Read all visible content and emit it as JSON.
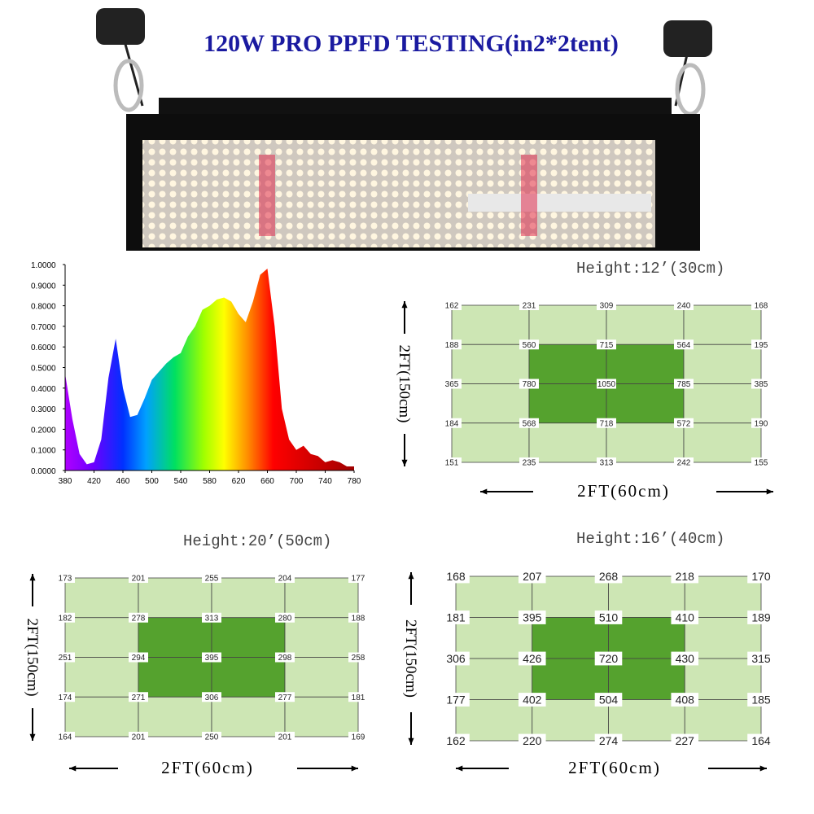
{
  "title": "120W  PRO PPFD TESTING(in2*2tent)",
  "chart_data": {
    "type": "area",
    "x": [
      380,
      390,
      400,
      410,
      420,
      430,
      440,
      450,
      460,
      470,
      480,
      490,
      500,
      510,
      520,
      530,
      540,
      550,
      560,
      570,
      580,
      590,
      600,
      610,
      620,
      630,
      640,
      650,
      660,
      670,
      680,
      690,
      700,
      710,
      720,
      730,
      740,
      750,
      760,
      770,
      780
    ],
    "values": [
      0.47,
      0.25,
      0.08,
      0.03,
      0.04,
      0.15,
      0.45,
      0.64,
      0.4,
      0.26,
      0.27,
      0.35,
      0.44,
      0.48,
      0.52,
      0.55,
      0.57,
      0.65,
      0.7,
      0.78,
      0.8,
      0.83,
      0.84,
      0.82,
      0.76,
      0.72,
      0.82,
      0.95,
      0.98,
      0.7,
      0.3,
      0.15,
      0.1,
      0.12,
      0.08,
      0.07,
      0.04,
      0.05,
      0.04,
      0.02,
      0.02
    ],
    "xlim": [
      380,
      780
    ],
    "xticks": [
      380,
      420,
      460,
      500,
      540,
      580,
      620,
      660,
      700,
      740,
      780
    ],
    "ylim": [
      0,
      1
    ],
    "yticks": [
      {
        "value": 0,
        "label": "0.0000"
      },
      {
        "value": 0.1,
        "label": "0.1000"
      },
      {
        "value": 0.2,
        "label": "0.2000"
      },
      {
        "value": 0.3,
        "label": "0.3000"
      },
      {
        "value": 0.4,
        "label": "0.4000"
      },
      {
        "value": 0.5,
        "label": "0.5000"
      },
      {
        "value": 0.6,
        "label": "0.6000"
      },
      {
        "value": 0.7,
        "label": "0.7000"
      },
      {
        "value": 0.8,
        "label": "0.8000"
      },
      {
        "value": 0.9,
        "label": "0.9000"
      },
      {
        "value": 1,
        "label": "1.0000"
      }
    ]
  },
  "grids": [
    {
      "height": "Height:12’(30cm)",
      "side": "2FT(150cm)",
      "bottom": "2FT(60cm)",
      "values": [
        [
          162,
          231,
          309,
          240,
          168
        ],
        [
          188,
          560,
          715,
          564,
          195
        ],
        [
          365,
          780,
          1050,
          785,
          385
        ],
        [
          184,
          568,
          718,
          572,
          190
        ],
        [
          151,
          235,
          313,
          242,
          155
        ]
      ]
    },
    {
      "height": "Height:20’(50cm)",
      "side": "2FT(150cm)",
      "bottom": "2FT(60cm)",
      "values": [
        [
          173,
          201,
          255,
          204,
          177
        ],
        [
          182,
          278,
          313,
          280,
          188
        ],
        [
          251,
          294,
          395,
          298,
          258
        ],
        [
          174,
          271,
          306,
          277,
          181
        ],
        [
          164,
          201,
          250,
          201,
          169
        ]
      ]
    },
    {
      "height": "Height:16’(40cm)",
      "side": "2FT(150cm)",
      "bottom": "2FT(60cm)",
      "values": [
        [
          168,
          207,
          268,
          218,
          170
        ],
        [
          181,
          395,
          510,
          410,
          189
        ],
        [
          306,
          426,
          720,
          430,
          315
        ],
        [
          177,
          402,
          504,
          408,
          185
        ],
        [
          162,
          220,
          274,
          227,
          164
        ]
      ]
    }
  ]
}
